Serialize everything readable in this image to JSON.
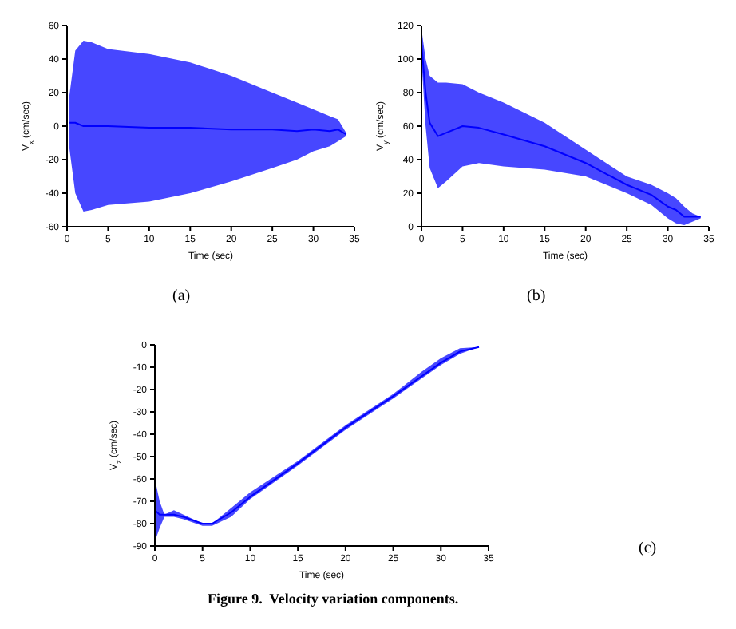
{
  "chart_data": [
    {
      "type": "line",
      "xlabel": "Time (sec)",
      "ylabel": "V$_{x}$ (cm/sec)",
      "annotations": [
        "(a)"
      ],
      "xlim": [
        0,
        35
      ],
      "xticks": [
        0,
        5,
        10,
        15,
        20,
        25,
        30,
        35
      ],
      "ylim": [
        -60,
        60
      ],
      "yticks": [
        -60,
        -40,
        -20,
        0,
        20,
        40,
        60
      ],
      "grid": false,
      "legend": false,
      "marker": "none",
      "line_style": "solid",
      "series": [
        {
          "color": "#0000ff",
          "x": [
            0.2,
            1,
            2,
            3,
            5,
            10,
            15,
            20,
            25,
            28,
            30,
            32,
            33,
            34
          ],
          "values": [
            2,
            2,
            0,
            0,
            0,
            -1,
            -1,
            -2,
            -2,
            -3,
            -2,
            -3,
            -2,
            -5
          ],
          "lower": [
            -10,
            -40,
            -51,
            -50,
            -47,
            -45,
            -40,
            -33,
            -25,
            -20,
            -15,
            -12,
            -9,
            -6
          ],
          "upper": [
            15,
            45,
            51,
            50,
            46,
            43,
            38,
            30,
            20,
            14,
            10,
            6,
            4,
            -4
          ]
        }
      ]
    },
    {
      "type": "line",
      "xlabel": "Time (sec)",
      "ylabel": "V$_{y}$ (cm/sec)",
      "annotations": [
        "(b)"
      ],
      "xlim": [
        0,
        35
      ],
      "xticks": [
        0,
        5,
        10,
        15,
        20,
        25,
        30,
        35
      ],
      "ylim": [
        0,
        120
      ],
      "yticks": [
        0,
        20,
        40,
        60,
        80,
        100,
        120
      ],
      "grid": false,
      "legend": false,
      "marker": "none",
      "line_style": "solid",
      "series": [
        {
          "color": "#0000ff",
          "x": [
            0,
            0.5,
            1,
            2,
            3,
            5,
            7,
            10,
            15,
            20,
            25,
            28,
            30,
            31,
            32,
            33,
            34
          ],
          "values": [
            109,
            80,
            62,
            54,
            56,
            60,
            59,
            55,
            48,
            38,
            25,
            19,
            12,
            10,
            6,
            6,
            6
          ],
          "lower": [
            100,
            60,
            35,
            23,
            27,
            36,
            38,
            36,
            34,
            30,
            20,
            13,
            5,
            2,
            1,
            3,
            5
          ],
          "upper": [
            118,
            100,
            90,
            86,
            86,
            85,
            80,
            74,
            62,
            46,
            30,
            25,
            20,
            17,
            12,
            8,
            6
          ]
        }
      ]
    },
    {
      "type": "line",
      "xlabel": "Time (sec)",
      "ylabel": "V$_{z}$ (cm/sec)",
      "annotations": [
        "(c)",
        "Figure 9.  Velocity variation components."
      ],
      "xlim": [
        0,
        35
      ],
      "xticks": [
        0,
        5,
        10,
        15,
        20,
        25,
        30,
        35
      ],
      "ylim": [
        -90,
        0
      ],
      "yticks": [
        -90,
        -80,
        -70,
        -60,
        -50,
        -40,
        -30,
        -20,
        -10,
        0
      ],
      "grid": false,
      "legend": false,
      "marker": "none",
      "line_style": "solid",
      "series": [
        {
          "color": "#0000ff",
          "x": [
            0,
            0.5,
            1,
            2,
            3,
            5,
            6,
            8,
            10,
            15,
            20,
            25,
            28,
            30,
            32,
            34
          ],
          "values": [
            -74,
            -76,
            -76,
            -76,
            -77,
            -80,
            -80,
            -75,
            -68,
            -53,
            -37,
            -23,
            -14,
            -8,
            -3,
            -1
          ],
          "lower": [
            -88,
            -82,
            -77,
            -77,
            -78,
            -81,
            -81,
            -77,
            -69,
            -54,
            -38,
            -24,
            -15,
            -9,
            -4,
            -1
          ],
          "upper": [
            -60,
            -70,
            -76,
            -74,
            -76,
            -80,
            -80,
            -73,
            -66,
            -52,
            -36,
            -22,
            -12,
            -6,
            -1.5,
            -1
          ]
        }
      ]
    }
  ]
}
